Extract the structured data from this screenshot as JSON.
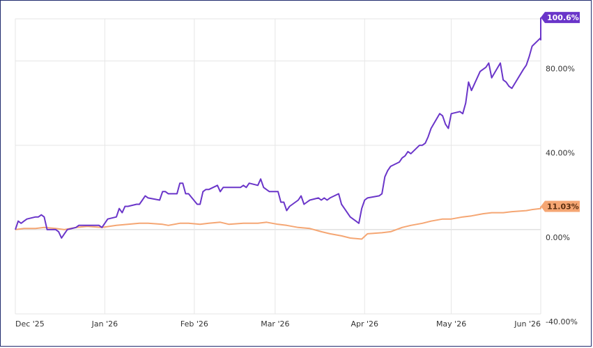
{
  "chart_data": {
    "type": "line",
    "title": "",
    "xlabel": "",
    "ylabel": "",
    "ylim": [
      -40,
      100
    ],
    "y_ticks": [
      {
        "value": 80,
        "label": "80.00%"
      },
      {
        "value": 40,
        "label": "40.00%"
      },
      {
        "value": 0,
        "label": "0.00%"
      },
      {
        "value": -40,
        "label": "-40.00%"
      }
    ],
    "x_ticks": [
      {
        "date": "2025-12-01",
        "label": "Dec '25"
      },
      {
        "date": "2026-01-01",
        "label": "Jan '26"
      },
      {
        "date": "2026-02-01",
        "label": "Feb '26"
      },
      {
        "date": "2026-03-01",
        "label": "Mar '26"
      },
      {
        "date": "2026-04-01",
        "label": "Apr '26"
      },
      {
        "date": "2026-05-01",
        "label": "May '26"
      },
      {
        "date": "2026-06-01",
        "label": "Jun '26"
      }
    ],
    "x_range": [
      "2025-12-01",
      "2026-06-01"
    ],
    "grid": true,
    "series": [
      {
        "color": "#6a35c9",
        "end_label": "100.6%",
        "points": [
          [
            "2025-12-01",
            0
          ],
          [
            "2025-12-02",
            4
          ],
          [
            "2025-12-03",
            3
          ],
          [
            "2025-12-04",
            4
          ],
          [
            "2025-12-05",
            5
          ],
          [
            "2025-12-08",
            6
          ],
          [
            "2025-12-09",
            6
          ],
          [
            "2025-12-10",
            7
          ],
          [
            "2025-12-11",
            6
          ],
          [
            "2025-12-12",
            0
          ],
          [
            "2025-12-15",
            0
          ],
          [
            "2025-12-16",
            -1
          ],
          [
            "2025-12-17",
            -4
          ],
          [
            "2025-12-18",
            -2
          ],
          [
            "2025-12-19",
            0
          ],
          [
            "2025-12-22",
            1
          ],
          [
            "2025-12-23",
            2
          ],
          [
            "2025-12-24",
            2
          ],
          [
            "2025-12-26",
            2
          ],
          [
            "2025-12-29",
            2
          ],
          [
            "2025-12-30",
            2
          ],
          [
            "2025-12-31",
            1
          ],
          [
            "2026-01-02",
            5
          ],
          [
            "2026-01-05",
            6
          ],
          [
            "2026-01-06",
            10
          ],
          [
            "2026-01-07",
            8
          ],
          [
            "2026-01-08",
            11
          ],
          [
            "2026-01-09",
            11
          ],
          [
            "2026-01-12",
            12
          ],
          [
            "2026-01-13",
            12
          ],
          [
            "2026-01-14",
            14
          ],
          [
            "2026-01-15",
            16
          ],
          [
            "2026-01-16",
            15
          ],
          [
            "2026-01-20",
            14
          ],
          [
            "2026-01-21",
            18
          ],
          [
            "2026-01-22",
            18
          ],
          [
            "2026-01-23",
            17
          ],
          [
            "2026-01-26",
            17
          ],
          [
            "2026-01-27",
            22
          ],
          [
            "2026-01-28",
            22
          ],
          [
            "2026-01-29",
            17
          ],
          [
            "2026-01-30",
            17
          ],
          [
            "2026-02-02",
            12
          ],
          [
            "2026-02-03",
            12
          ],
          [
            "2026-02-04",
            18
          ],
          [
            "2026-02-05",
            19
          ],
          [
            "2026-02-06",
            19
          ],
          [
            "2026-02-09",
            21
          ],
          [
            "2026-02-10",
            18
          ],
          [
            "2026-02-11",
            20
          ],
          [
            "2026-02-12",
            20
          ],
          [
            "2026-02-13",
            20
          ],
          [
            "2026-02-17",
            20
          ],
          [
            "2026-02-18",
            21
          ],
          [
            "2026-02-19",
            20
          ],
          [
            "2026-02-20",
            22
          ],
          [
            "2026-02-23",
            21
          ],
          [
            "2026-02-24",
            24
          ],
          [
            "2026-02-25",
            20
          ],
          [
            "2026-02-26",
            19
          ],
          [
            "2026-02-27",
            18
          ],
          [
            "2026-03-02",
            18
          ],
          [
            "2026-03-03",
            13
          ],
          [
            "2026-03-04",
            13
          ],
          [
            "2026-03-05",
            9
          ],
          [
            "2026-03-06",
            11
          ],
          [
            "2026-03-09",
            14
          ],
          [
            "2026-03-10",
            16
          ],
          [
            "2026-03-11",
            12
          ],
          [
            "2026-03-12",
            13
          ],
          [
            "2026-03-13",
            14
          ],
          [
            "2026-03-16",
            15
          ],
          [
            "2026-03-17",
            14
          ],
          [
            "2026-03-18",
            15
          ],
          [
            "2026-03-19",
            14
          ],
          [
            "2026-03-20",
            15
          ],
          [
            "2026-03-23",
            17
          ],
          [
            "2026-03-24",
            12
          ],
          [
            "2026-03-25",
            10
          ],
          [
            "2026-03-26",
            8
          ],
          [
            "2026-03-27",
            6
          ],
          [
            "2026-03-30",
            3
          ],
          [
            "2026-03-31",
            10
          ],
          [
            "2026-04-01",
            14
          ],
          [
            "2026-04-02",
            15
          ],
          [
            "2026-04-06",
            16
          ],
          [
            "2026-04-07",
            17
          ],
          [
            "2026-04-08",
            25
          ],
          [
            "2026-04-09",
            28
          ],
          [
            "2026-04-10",
            30
          ],
          [
            "2026-04-13",
            32
          ],
          [
            "2026-04-14",
            34
          ],
          [
            "2026-04-15",
            35
          ],
          [
            "2026-04-16",
            37
          ],
          [
            "2026-04-17",
            36
          ],
          [
            "2026-04-20",
            40
          ],
          [
            "2026-04-21",
            40
          ],
          [
            "2026-04-22",
            41
          ],
          [
            "2026-04-23",
            44
          ],
          [
            "2026-04-24",
            48
          ],
          [
            "2026-04-27",
            55
          ],
          [
            "2026-04-28",
            54
          ],
          [
            "2026-04-29",
            50
          ],
          [
            "2026-04-30",
            48
          ],
          [
            "2026-05-01",
            55
          ],
          [
            "2026-05-04",
            56
          ],
          [
            "2026-05-05",
            55
          ],
          [
            "2026-05-06",
            60
          ],
          [
            "2026-05-07",
            70
          ],
          [
            "2026-05-08",
            66
          ],
          [
            "2026-05-11",
            75
          ],
          [
            "2026-05-12",
            76
          ],
          [
            "2026-05-13",
            77
          ],
          [
            "2026-05-14",
            79
          ],
          [
            "2026-05-15",
            72
          ],
          [
            "2026-05-18",
            79
          ],
          [
            "2026-05-19",
            71
          ],
          [
            "2026-05-20",
            70
          ],
          [
            "2026-05-21",
            68
          ],
          [
            "2026-05-22",
            67
          ],
          [
            "2026-05-26",
            76
          ],
          [
            "2026-05-27",
            78
          ],
          [
            "2026-05-28",
            82
          ],
          [
            "2026-05-29",
            87
          ],
          [
            "2026-06-01",
            91
          ],
          [
            "2026-06-02",
            94
          ],
          [
            "2026-06-03",
            90
          ],
          [
            "2026-06-04",
            92
          ],
          [
            "2026-06-05",
            92
          ],
          [
            "2026-06-08",
            93
          ],
          [
            "2026-06-09",
            100.6
          ]
        ]
      },
      {
        "color": "#f5a673",
        "end_label": "11.03%",
        "points": [
          [
            "2025-12-01",
            0
          ],
          [
            "2025-12-04",
            0.5
          ],
          [
            "2025-12-08",
            0.5
          ],
          [
            "2025-12-11",
            1
          ],
          [
            "2025-12-15",
            0.5
          ],
          [
            "2025-12-18",
            0
          ],
          [
            "2025-12-22",
            1
          ],
          [
            "2025-12-26",
            1.5
          ],
          [
            "2025-12-31",
            1
          ],
          [
            "2026-01-05",
            2
          ],
          [
            "2026-01-09",
            2.5
          ],
          [
            "2026-01-13",
            3
          ],
          [
            "2026-01-16",
            3
          ],
          [
            "2026-01-21",
            2.5
          ],
          [
            "2026-01-23",
            2
          ],
          [
            "2026-01-27",
            3
          ],
          [
            "2026-01-30",
            3
          ],
          [
            "2026-02-03",
            2.5
          ],
          [
            "2026-02-06",
            3
          ],
          [
            "2026-02-10",
            3.5
          ],
          [
            "2026-02-13",
            2.5
          ],
          [
            "2026-02-18",
            3
          ],
          [
            "2026-02-23",
            3
          ],
          [
            "2026-02-26",
            3.5
          ],
          [
            "2026-03-02",
            2.5
          ],
          [
            "2026-03-05",
            2
          ],
          [
            "2026-03-09",
            1
          ],
          [
            "2026-03-13",
            0.5
          ],
          [
            "2026-03-17",
            -1
          ],
          [
            "2026-03-20",
            -2
          ],
          [
            "2026-03-24",
            -3
          ],
          [
            "2026-03-27",
            -4
          ],
          [
            "2026-03-31",
            -4.5
          ],
          [
            "2026-04-02",
            -2
          ],
          [
            "2026-04-07",
            -1.5
          ],
          [
            "2026-04-10",
            -1
          ],
          [
            "2026-04-14",
            1
          ],
          [
            "2026-04-17",
            2
          ],
          [
            "2026-04-21",
            3
          ],
          [
            "2026-04-24",
            4
          ],
          [
            "2026-04-28",
            5
          ],
          [
            "2026-05-01",
            5
          ],
          [
            "2026-05-05",
            6
          ],
          [
            "2026-05-08",
            6.5
          ],
          [
            "2026-05-12",
            7.5
          ],
          [
            "2026-05-15",
            8
          ],
          [
            "2026-05-19",
            8
          ],
          [
            "2026-05-22",
            8.5
          ],
          [
            "2026-05-27",
            9
          ],
          [
            "2026-05-29",
            9.5
          ],
          [
            "2026-06-02",
            10
          ],
          [
            "2026-06-05",
            10.5
          ],
          [
            "2026-06-09",
            11.03
          ]
        ]
      }
    ]
  }
}
